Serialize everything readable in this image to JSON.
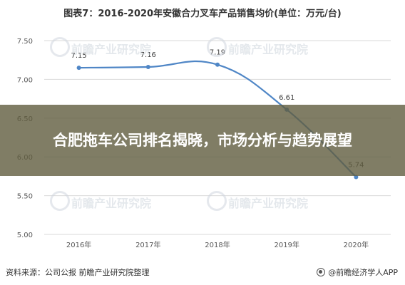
{
  "title": "图表7：2016-2020年安徽合力叉车产品销售均价(单位：万元/台)",
  "overlay_title": "合肥拖车公司排名揭晓，市场分析与趋势展望",
  "source": "资料来源：公司公报 前瞻产业研究院整理",
  "publisher": "@前瞻经济学人APP",
  "watermark_text": "前瞻产业研究院",
  "colors": {
    "line": "#4f86c6",
    "grid": "#d9d9d9",
    "overlay": "#605c3e"
  },
  "chart_data": {
    "type": "line",
    "title": "图表7：2016-2020年安徽合力叉车产品销售均价(单位：万元/台)",
    "xlabel": "",
    "ylabel": "",
    "categories": [
      "2016年",
      "2017年",
      "2018年",
      "2019年",
      "2020年"
    ],
    "series": [
      {
        "values": [
          7.15,
          7.16,
          7.19,
          6.61,
          5.74
        ]
      }
    ],
    "data_labels": [
      "7.15",
      "7.16",
      "7.19",
      "6.61",
      "5.74"
    ],
    "y_ticks": [
      "5.00",
      "5.50",
      "6.00",
      "6.50",
      "7.00",
      "7.50"
    ],
    "ylim": [
      5.0,
      7.5
    ],
    "grid": true,
    "legend": "none"
  }
}
